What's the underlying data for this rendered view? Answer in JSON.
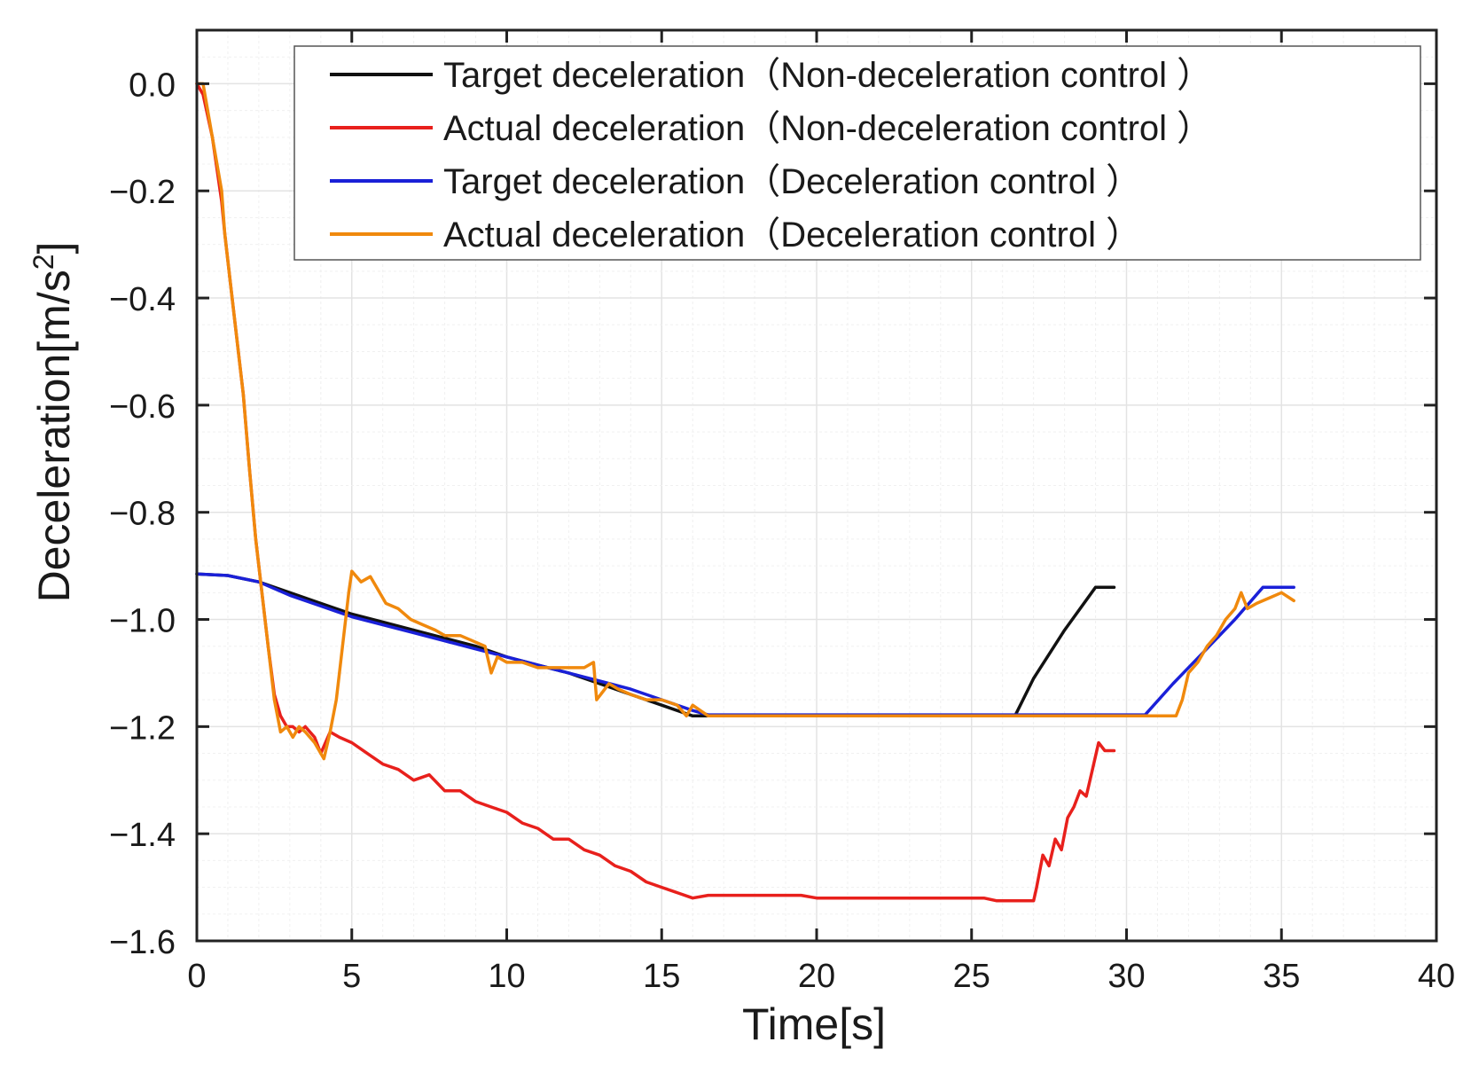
{
  "chart_data": {
    "type": "line",
    "title": "",
    "xlabel": "Time[s]",
    "ylabel_main": "Deceleration[m/s",
    "ylabel_sup": "2",
    "ylabel_end": "]",
    "xlim": [
      0,
      40
    ],
    "ylim": [
      -1.6,
      0.1
    ],
    "xticks": [
      0,
      5,
      10,
      15,
      20,
      25,
      30,
      35,
      40
    ],
    "xtick_labels": [
      "0",
      "5",
      "10",
      "15",
      "20",
      "25",
      "30",
      "35",
      "40"
    ],
    "yticks": [
      0.0,
      -0.2,
      -0.4,
      -0.6,
      -0.8,
      -1.0,
      -1.2,
      -1.4,
      -1.6
    ],
    "ytick_labels": [
      "0.0",
      "−0.2",
      "−0.4",
      "−0.6",
      "−0.8",
      "−1.0",
      "−1.2",
      "−1.4",
      "−1.6"
    ],
    "grid": true,
    "legend_position": "top-right",
    "series": [
      {
        "name": "Target deceleration（Non-deceleration control ）",
        "color": "#111111",
        "x": [
          0,
          1,
          2,
          3,
          4,
          5,
          6,
          7,
          8,
          9,
          10,
          11,
          12,
          13,
          14,
          15,
          16,
          17,
          20,
          24,
          26.4,
          27,
          28,
          29,
          29.6
        ],
        "y": [
          -0.915,
          -0.918,
          -0.93,
          -0.95,
          -0.97,
          -0.99,
          -1.005,
          -1.02,
          -1.035,
          -1.05,
          -1.07,
          -1.085,
          -1.1,
          -1.12,
          -1.14,
          -1.16,
          -1.18,
          -1.18,
          -1.18,
          -1.18,
          -1.18,
          -1.11,
          -1.02,
          -0.94,
          -0.94
        ]
      },
      {
        "name": "Actual deceleration（Non-deceleration control ）",
        "color": "#e8201c",
        "x": [
          0,
          0.2,
          0.5,
          0.8,
          0.9,
          1.1,
          1.3,
          1.5,
          1.7,
          1.9,
          2.1,
          2.3,
          2.5,
          2.7,
          2.9,
          3.1,
          3.3,
          3.5,
          3.8,
          4.0,
          4.3,
          4.6,
          5.0,
          5.5,
          6.0,
          6.5,
          7.0,
          7.5,
          8.0,
          8.5,
          9.0,
          9.5,
          10.0,
          10.5,
          11.0,
          11.5,
          12.0,
          12.5,
          13.0,
          13.5,
          14.0,
          14.5,
          15.0,
          15.5,
          16.0,
          16.5,
          18,
          19.5,
          20,
          22,
          24,
          25.4,
          25.8,
          27.0,
          27.1,
          27.3,
          27.5,
          27.7,
          27.9,
          28.1,
          28.3,
          28.5,
          28.7,
          28.9,
          29.1,
          29.3,
          29.6
        ],
        "y": [
          0.0,
          -0.02,
          -0.1,
          -0.22,
          -0.28,
          -0.38,
          -0.48,
          -0.58,
          -0.72,
          -0.85,
          -0.95,
          -1.05,
          -1.14,
          -1.18,
          -1.2,
          -1.2,
          -1.21,
          -1.2,
          -1.22,
          -1.25,
          -1.21,
          -1.22,
          -1.23,
          -1.25,
          -1.27,
          -1.28,
          -1.3,
          -1.29,
          -1.32,
          -1.32,
          -1.34,
          -1.35,
          -1.36,
          -1.38,
          -1.39,
          -1.41,
          -1.41,
          -1.43,
          -1.44,
          -1.46,
          -1.47,
          -1.49,
          -1.5,
          -1.51,
          -1.52,
          -1.515,
          -1.515,
          -1.515,
          -1.52,
          -1.52,
          -1.52,
          -1.52,
          -1.525,
          -1.525,
          -1.5,
          -1.44,
          -1.46,
          -1.41,
          -1.43,
          -1.37,
          -1.35,
          -1.32,
          -1.33,
          -1.28,
          -1.23,
          -1.245,
          -1.245
        ]
      },
      {
        "name": "Target deceleration（Deceleration control ）",
        "color": "#1a20d8",
        "x": [
          0,
          1,
          2,
          3,
          4,
          5,
          6,
          7,
          8,
          9,
          10,
          11,
          12,
          13,
          14,
          15,
          16,
          16.5,
          20,
          25,
          30,
          30.6,
          31.5,
          32.5,
          33.5,
          34.4,
          35.4
        ],
        "y": [
          -0.915,
          -0.918,
          -0.93,
          -0.955,
          -0.975,
          -0.995,
          -1.01,
          -1.025,
          -1.04,
          -1.055,
          -1.07,
          -1.085,
          -1.1,
          -1.115,
          -1.13,
          -1.15,
          -1.17,
          -1.178,
          -1.178,
          -1.178,
          -1.178,
          -1.178,
          -1.12,
          -1.06,
          -1.0,
          -0.94,
          -0.94
        ]
      },
      {
        "name": "Actual deceleration（Deceleration control ）",
        "color": "#f0890d",
        "x": [
          0,
          0.2,
          0.5,
          0.8,
          0.9,
          1.1,
          1.3,
          1.5,
          1.7,
          1.9,
          2.1,
          2.3,
          2.5,
          2.7,
          2.9,
          3.1,
          3.3,
          3.5,
          3.8,
          4.1,
          4.3,
          4.5,
          4.7,
          4.9,
          5.0,
          5.3,
          5.6,
          5.9,
          6.1,
          6.5,
          6.9,
          7.3,
          7.7,
          8.0,
          8.5,
          8.9,
          9.3,
          9.5,
          9.7,
          10.0,
          10.5,
          11.0,
          11.5,
          12.0,
          12.5,
          12.8,
          12.9,
          13.3,
          13.6,
          14.0,
          14.5,
          15.0,
          15.5,
          15.8,
          16.0,
          16.5,
          20,
          25,
          30,
          31.6,
          31.8,
          32.0,
          32.3,
          32.6,
          32.9,
          33.2,
          33.5,
          33.7,
          33.9,
          34.2,
          34.6,
          35.0,
          35.4
        ],
        "y": [
          0.0,
          0.0,
          -0.1,
          -0.2,
          -0.28,
          -0.38,
          -0.48,
          -0.58,
          -0.72,
          -0.85,
          -0.95,
          -1.05,
          -1.15,
          -1.21,
          -1.2,
          -1.22,
          -1.2,
          -1.21,
          -1.23,
          -1.26,
          -1.21,
          -1.15,
          -1.05,
          -0.95,
          -0.91,
          -0.93,
          -0.92,
          -0.95,
          -0.97,
          -0.98,
          -1.0,
          -1.01,
          -1.02,
          -1.03,
          -1.03,
          -1.04,
          -1.05,
          -1.1,
          -1.07,
          -1.08,
          -1.08,
          -1.09,
          -1.09,
          -1.09,
          -1.09,
          -1.08,
          -1.15,
          -1.12,
          -1.13,
          -1.14,
          -1.15,
          -1.15,
          -1.16,
          -1.18,
          -1.16,
          -1.18,
          -1.18,
          -1.18,
          -1.18,
          -1.18,
          -1.15,
          -1.1,
          -1.08,
          -1.05,
          -1.03,
          -1.0,
          -0.98,
          -0.95,
          -0.98,
          -0.97,
          -0.96,
          -0.95,
          -0.965
        ]
      }
    ]
  }
}
